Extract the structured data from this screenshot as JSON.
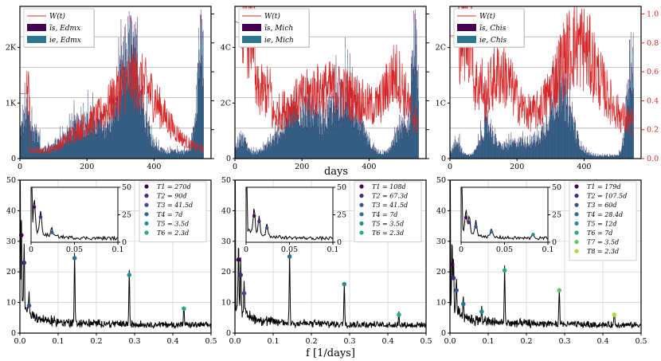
{
  "chart_data": [
    {
      "type": "bar+line",
      "panel": "top-left",
      "x_ticks": [
        "0",
        "200",
        "400"
      ],
      "xlim": [
        0,
        570
      ],
      "left_ticks": [
        "0",
        "1K",
        "2K"
      ],
      "right_ticks": [],
      "legend": [
        "W(t)",
        "ĩs, Edmx",
        "ie, Edmx"
      ],
      "series": [
        {
          "name": "W(t)",
          "color": "#d62728"
        },
        {
          "name": "ĩs, Edmx",
          "color": "#440154"
        },
        {
          "name": "ie, Edmx",
          "color": "#2a788e"
        }
      ]
    },
    {
      "type": "bar+line",
      "panel": "top-middle",
      "x_ticks": [
        "0",
        "200",
        "400"
      ],
      "xlim": [
        0,
        570
      ],
      "left_ticks": [
        "0",
        "2C",
        "4C"
      ],
      "right_ticks": [],
      "legend": [
        "W(t)",
        "ĩs, Mich",
        "ie, Mich"
      ],
      "series": [
        {
          "name": "W(t)",
          "color": "#d62728"
        },
        {
          "name": "ĩs, Mich",
          "color": "#440154"
        },
        {
          "name": "ie, Mich",
          "color": "#2a788e"
        }
      ]
    },
    {
      "type": "bar+line",
      "panel": "top-right",
      "x_ticks": [
        "0",
        "200",
        "400"
      ],
      "xlim": [
        0,
        570
      ],
      "left_ticks": [
        "0",
        "1C",
        "2C"
      ],
      "right_ticks": [
        "0.0",
        "0.2",
        "0.4",
        "0.6",
        "0.8",
        "1.0"
      ],
      "legend": [
        "W(t)",
        "ĩs, Chis",
        "ie, Chis"
      ],
      "series": [
        {
          "name": "W(t)",
          "color": "#d62728"
        },
        {
          "name": "ĩs, Chis",
          "color": "#440154"
        },
        {
          "name": "ie, Chis",
          "color": "#2a788e"
        }
      ]
    },
    {
      "type": "line",
      "panel": "bottom-left",
      "xlim": [
        0,
        0.5
      ],
      "ylim": [
        0,
        50
      ],
      "x_ticks": [
        "0.0",
        "0.1",
        "0.2",
        "0.3",
        "0.4",
        "0.5"
      ],
      "y_ticks": [
        "0",
        "10",
        "20",
        "30",
        "40",
        "50"
      ],
      "peaks": [
        {
          "label": "T1 = 270d",
          "f": 0.0037,
          "y": 32
        },
        {
          "label": "T2 = 90d",
          "f": 0.011,
          "y": 23
        },
        {
          "label": "T3 = 41.5d",
          "f": 0.024,
          "y": 9
        },
        {
          "label": "T4 = 7d",
          "f": 0.143,
          "y": 24.5
        },
        {
          "label": "T5 = 3.5d",
          "f": 0.286,
          "y": 19
        },
        {
          "label": "T6 = 2.3d",
          "f": 0.429,
          "y": 8
        }
      ],
      "inset": {
        "x_ticks": [
          "0",
          "0.05",
          "0.1"
        ],
        "y_ticks": [
          "0",
          "25",
          "50"
        ]
      }
    },
    {
      "type": "line",
      "panel": "bottom-middle",
      "xlim": [
        0,
        0.5
      ],
      "ylim": [
        0,
        50
      ],
      "x_ticks": [
        "0.0",
        "0.1",
        "0.2",
        "0.3",
        "0.4",
        "0.5"
      ],
      "y_ticks": [
        "0",
        "10",
        "20",
        "30",
        "40",
        "50"
      ],
      "peaks": [
        {
          "label": "T1 = 108d",
          "f": 0.0093,
          "y": 24
        },
        {
          "label": "T2 = 67.3d",
          "f": 0.015,
          "y": 19
        },
        {
          "label": "T3 = 41.5d",
          "f": 0.024,
          "y": 13
        },
        {
          "label": "T4 = 7d",
          "f": 0.143,
          "y": 25
        },
        {
          "label": "T5 = 3.5d",
          "f": 0.286,
          "y": 16
        },
        {
          "label": "T6 = 2.3d",
          "f": 0.429,
          "y": 6
        }
      ],
      "inset": {
        "x_ticks": [
          "0",
          "0.05",
          "0.1"
        ],
        "y_ticks": [
          "0",
          "25",
          "50"
        ]
      }
    },
    {
      "type": "line",
      "panel": "bottom-right",
      "xlim": [
        0,
        0.5
      ],
      "ylim": [
        0,
        50
      ],
      "x_ticks": [
        "0.0",
        "0.1",
        "0.2",
        "0.3",
        "0.4",
        "0.5"
      ],
      "y_ticks": [
        "0",
        "10",
        "20",
        "30",
        "40",
        "50"
      ],
      "peaks": [
        {
          "label": "T1 = 179d",
          "f": 0.0056,
          "y": 22.5
        },
        {
          "label": "T2 = 107.5d",
          "f": 0.0093,
          "y": 18
        },
        {
          "label": "T3 = 60d",
          "f": 0.017,
          "y": 14
        },
        {
          "label": "T4 = 28.4d",
          "f": 0.035,
          "y": 9.5
        },
        {
          "label": "T5 = 12d",
          "f": 0.083,
          "y": 7
        },
        {
          "label": "T6 = 7d",
          "f": 0.143,
          "y": 20.5
        },
        {
          "label": "T7 = 3.5d",
          "f": 0.286,
          "y": 14
        },
        {
          "label": "T8 = 2.3d",
          "f": 0.43,
          "y": 6
        }
      ],
      "inset": {
        "x_ticks": [
          "0",
          "0.05",
          "0.1"
        ],
        "y_ticks": [
          "0",
          "25",
          "50"
        ]
      }
    }
  ],
  "labels": {
    "top_xlabel": "days",
    "bottom_xlabel": "f [1/days]"
  },
  "colors": {
    "red": "#d62728",
    "purple": "#440154",
    "teal": "#2a788e"
  }
}
